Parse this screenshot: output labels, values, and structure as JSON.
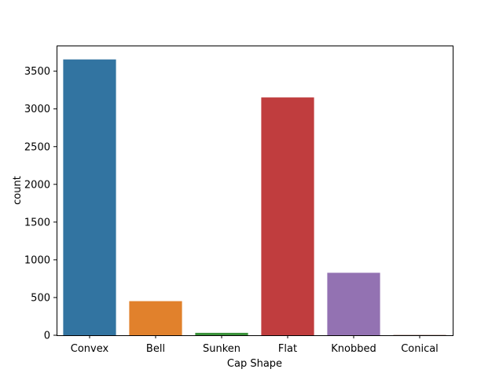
{
  "chart_data": {
    "type": "bar",
    "title": "",
    "xlabel": "Cap Shape",
    "ylabel": "count",
    "categories": [
      "Convex",
      "Bell",
      "Sunken",
      "Flat",
      "Knobbed",
      "Conical"
    ],
    "values": [
      3656,
      452,
      32,
      3152,
      828,
      4
    ],
    "colors": [
      "#3274a1",
      "#e1812c",
      "#3a923a",
      "#c03d3e",
      "#9372b2",
      "#845b53"
    ],
    "ylim": [
      0,
      3840
    ],
    "yticks": [
      0,
      500,
      1000,
      1500,
      2000,
      2500,
      3000,
      3500
    ],
    "grid": false,
    "legend": "none"
  }
}
